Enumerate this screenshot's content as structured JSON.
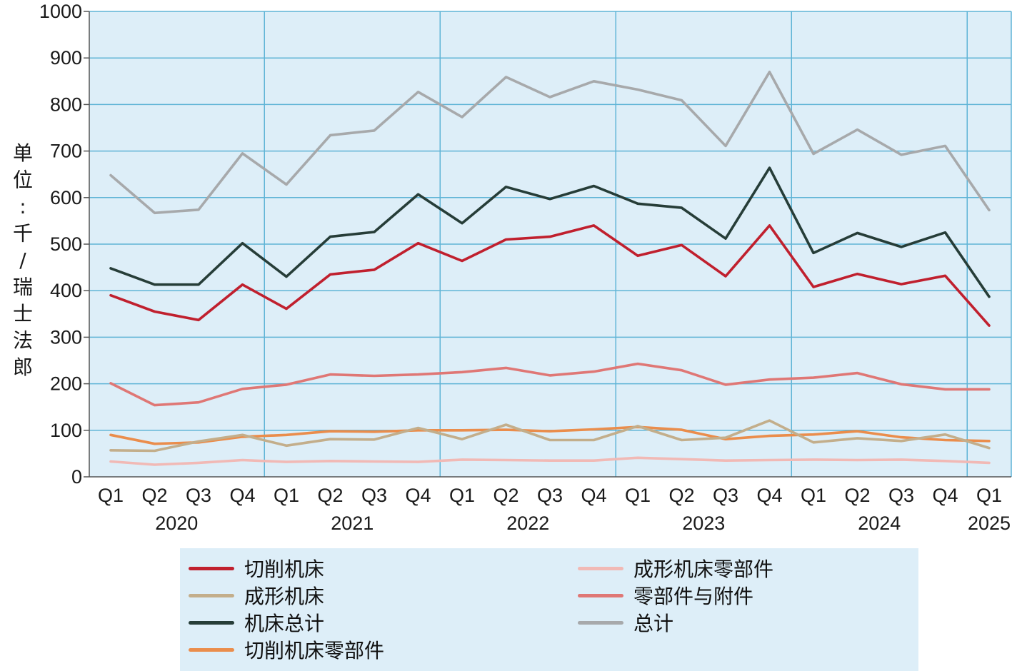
{
  "chart_data": {
    "type": "line",
    "ylabel": "单位：千/瑞士法郎",
    "ylim": [
      0,
      1000
    ],
    "yticks": [
      "0",
      "100",
      "200",
      "300",
      "400",
      "500",
      "600",
      "700",
      "800",
      "900",
      "1000"
    ],
    "quarters": [
      "Q1",
      "Q2",
      "Q3",
      "Q4",
      "Q1",
      "Q2",
      "Q3",
      "Q4",
      "Q1",
      "Q2",
      "Q3",
      "Q4",
      "Q1",
      "Q2",
      "Q3",
      "Q4",
      "Q1",
      "Q2",
      "Q3",
      "Q4",
      "Q1"
    ],
    "years": [
      "2020",
      "2021",
      "2022",
      "2023",
      "2024",
      "2025"
    ],
    "grid": true,
    "legend_position": "bottom",
    "series": [
      {
        "name": "切削机床",
        "color": "#c0202e",
        "values": [
          390,
          355,
          337,
          413,
          361,
          435,
          445,
          502,
          464,
          510,
          516,
          540,
          475,
          498,
          431,
          540,
          408,
          436,
          414,
          432,
          325
        ]
      },
      {
        "name": "成形机床",
        "color": "#c3ae8b",
        "values": [
          57,
          56,
          76,
          90,
          67,
          81,
          80,
          105,
          81,
          112,
          79,
          79,
          109,
          79,
          84,
          121,
          74,
          83,
          77,
          91,
          62
        ]
      },
      {
        "name": "机床总计",
        "color": "#263d38",
        "values": [
          448,
          413,
          413,
          502,
          430,
          516,
          526,
          607,
          545,
          623,
          597,
          625,
          587,
          578,
          512,
          664,
          481,
          524,
          494,
          525,
          387
        ]
      },
      {
        "name": "切削机床零部件",
        "color": "#ea8d4c",
        "values": [
          90,
          71,
          74,
          86,
          90,
          98,
          97,
          100,
          100,
          101,
          98,
          102,
          107,
          101,
          81,
          88,
          91,
          98,
          85,
          79,
          77
        ]
      },
      {
        "name": "成形机床零部件",
        "color": "#f1b9b5",
        "values": [
          33,
          26,
          30,
          36,
          32,
          34,
          33,
          32,
          37,
          36,
          35,
          35,
          41,
          38,
          35,
          36,
          37,
          36,
          37,
          34,
          30
        ]
      },
      {
        "name": "零部件与附件",
        "color": "#df7775",
        "values": [
          201,
          154,
          160,
          189,
          198,
          220,
          217,
          220,
          225,
          234,
          218,
          226,
          243,
          229,
          198,
          209,
          213,
          223,
          199,
          188,
          188
        ]
      },
      {
        "name": "总计",
        "color": "#a7a9ab",
        "values": [
          648,
          567,
          574,
          695,
          628,
          734,
          744,
          827,
          773,
          859,
          816,
          850,
          832,
          809,
          711,
          870,
          694,
          746,
          692,
          711,
          573
        ]
      }
    ]
  }
}
